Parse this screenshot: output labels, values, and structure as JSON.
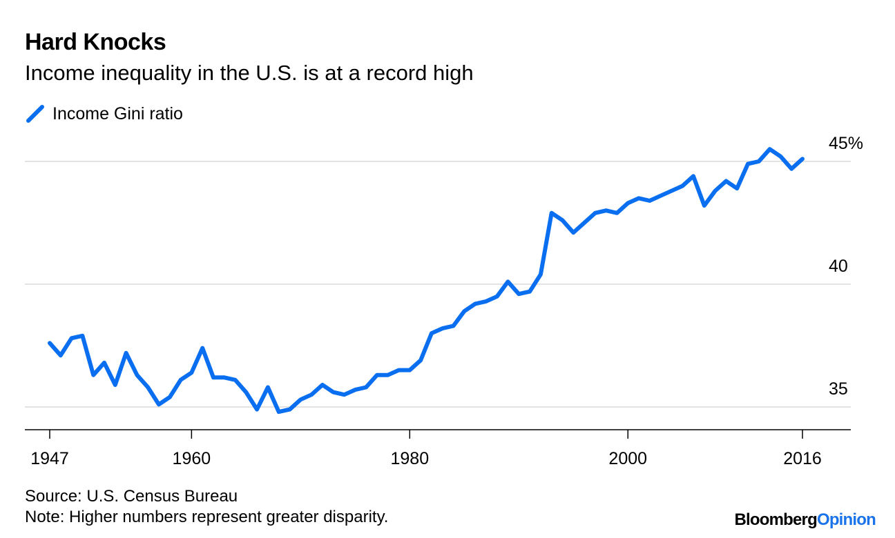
{
  "header": {
    "title": "Hard Knocks",
    "subtitle": "Income inequality in the U.S. is at a record high"
  },
  "legend": {
    "label": "Income Gini ratio",
    "color": "#0a6ef0"
  },
  "footer": {
    "source": "Source: U.S. Census Bureau",
    "note": "Note: Higher numbers represent greater disparity.",
    "brand_main": "Bloomberg",
    "brand_accent": "Opinion"
  },
  "chart_data": {
    "type": "line",
    "title": "Hard Knocks",
    "subtitle": "Income inequality in the U.S. is at a record high",
    "xlabel": "",
    "ylabel": "",
    "xlim": [
      1945,
      2019
    ],
    "ylim": [
      34.1,
      46
    ],
    "x_ticks": [
      1947,
      1960,
      1980,
      2000,
      2016
    ],
    "y_ticks": [
      {
        "value": 35,
        "label": "35"
      },
      {
        "value": 40,
        "label": "40"
      },
      {
        "value": 45,
        "label": "45%"
      }
    ],
    "grid": true,
    "legend_position": "top-left",
    "series": [
      {
        "name": "Income Gini ratio",
        "color": "#0a6ef0",
        "x": [
          1947,
          1948,
          1949,
          1950,
          1951,
          1952,
          1953,
          1954,
          1955,
          1956,
          1957,
          1958,
          1959,
          1960,
          1961,
          1962,
          1963,
          1964,
          1965,
          1966,
          1967,
          1968,
          1969,
          1970,
          1971,
          1972,
          1973,
          1974,
          1975,
          1976,
          1977,
          1978,
          1979,
          1980,
          1981,
          1982,
          1983,
          1984,
          1985,
          1986,
          1987,
          1988,
          1989,
          1990,
          1991,
          1992,
          1993,
          1994,
          1995,
          1996,
          1997,
          1998,
          1999,
          2000,
          2001,
          2002,
          2003,
          2004,
          2005,
          2006,
          2007,
          2008,
          2009,
          2010,
          2011,
          2012,
          2013,
          2014,
          2015,
          2016
        ],
        "values": [
          37.6,
          37.1,
          37.8,
          37.9,
          36.3,
          36.8,
          35.9,
          37.2,
          36.3,
          35.8,
          35.1,
          35.4,
          36.1,
          36.4,
          37.4,
          36.2,
          36.2,
          36.1,
          35.6,
          34.9,
          35.8,
          34.8,
          34.9,
          35.3,
          35.5,
          35.9,
          35.6,
          35.5,
          35.7,
          35.8,
          36.3,
          36.3,
          36.5,
          36.5,
          36.9,
          38.0,
          38.2,
          38.3,
          38.9,
          39.2,
          39.3,
          39.5,
          40.1,
          39.6,
          39.7,
          40.4,
          42.9,
          42.6,
          42.1,
          42.5,
          42.9,
          43.0,
          42.9,
          43.3,
          43.5,
          43.4,
          43.6,
          43.8,
          44.0,
          44.4,
          43.2,
          43.8,
          44.2,
          43.9,
          44.9,
          45.0,
          45.5,
          45.2,
          44.7,
          45.1
        ]
      }
    ]
  }
}
